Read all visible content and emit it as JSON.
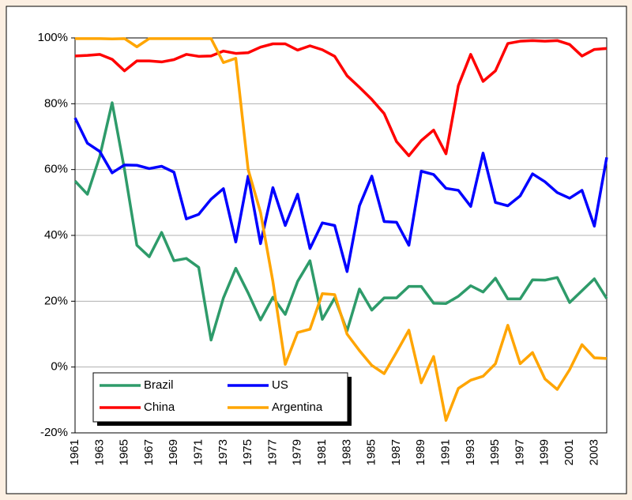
{
  "chart_data": {
    "type": "line",
    "categories": [
      "1961",
      null,
      "1963",
      null,
      "1965",
      null,
      "1967",
      null,
      "1969",
      null,
      "1971",
      null,
      "1973",
      null,
      "1975",
      null,
      "1977",
      null,
      "1979",
      null,
      "1981",
      null,
      "1983",
      null,
      "1985",
      null,
      "1987",
      null,
      "1989",
      null,
      "1991",
      null,
      "1993",
      null,
      "1995",
      null,
      "1997",
      null,
      "1999",
      null,
      "2001",
      null,
      "2003",
      null
    ],
    "series": [
      {
        "name": "Brazil",
        "color": "#2e9b6a",
        "values": [
          56.5,
          52.5,
          64,
          80.3,
          60,
          37,
          33.5,
          40.9,
          32.3,
          33,
          30.3,
          8.2,
          21,
          30,
          22.5,
          14.3,
          21.2,
          16,
          26,
          32.3,
          14.5,
          21,
          11,
          23.7,
          17.3,
          21,
          21,
          24.5,
          24.5,
          19.4,
          19.3,
          21.5,
          24.7,
          22.8,
          27,
          20.7,
          20.7,
          26.5,
          26.4,
          27.2,
          19.6,
          23.2,
          26.8,
          20.8
        ]
      },
      {
        "name": "US",
        "color": "#0000ff",
        "values": [
          75.7,
          68,
          65.5,
          59,
          61.4,
          61.3,
          60.3,
          61,
          59.2,
          45,
          46.4,
          51,
          54.2,
          38,
          58,
          37.5,
          54.5,
          43,
          52.5,
          36,
          43.8,
          43,
          29,
          49,
          58,
          44.2,
          44,
          37,
          59.5,
          58.5,
          54.3,
          53.7,
          48.8,
          65,
          50,
          49,
          52,
          58.7,
          56.3,
          53,
          51.3,
          53.7,
          42.8,
          63.7
        ]
      },
      {
        "name": "China",
        "color": "#ff0000",
        "values": [
          94.5,
          94.7,
          95,
          93.5,
          90,
          93,
          93,
          92.7,
          93.4,
          95,
          94.4,
          94.5,
          96,
          95.3,
          95.5,
          97.2,
          98.2,
          98.2,
          96.3,
          97.6,
          96.4,
          94.4,
          88.5,
          85,
          81.3,
          77,
          68.5,
          64.2,
          68.8,
          72,
          64.8,
          85.5,
          95,
          86.8,
          90,
          98.3,
          99,
          99.2,
          99,
          99.2,
          98,
          94.5,
          96.5,
          96.8
        ]
      },
      {
        "name": "Argentina",
        "color": "#ffa500",
        "values": [
          99.8,
          99.8,
          99.8,
          99.7,
          99.8,
          97.3,
          99.8,
          99.8,
          99.8,
          99.8,
          99.8,
          99.8,
          92.5,
          93.8,
          60,
          47,
          26,
          0.8,
          10.5,
          11.5,
          22.3,
          22,
          10,
          5,
          0.5,
          -2,
          4.5,
          11.2,
          -4.8,
          3.2,
          -16.2,
          -6.5,
          -4,
          -2.8,
          1,
          12.7,
          1,
          4.4,
          -3.6,
          -6.8,
          -0.8,
          6.8,
          2.8,
          2.6
        ]
      }
    ],
    "ylim": [
      -20,
      100
    ],
    "yticks": [
      {
        "value": -20,
        "label": "-20%"
      },
      {
        "value": 0,
        "label": "0%"
      },
      {
        "value": 20,
        "label": "20%"
      },
      {
        "value": 40,
        "label": "40%"
      },
      {
        "value": 60,
        "label": "60%"
      },
      {
        "value": 80,
        "label": "80%"
      },
      {
        "value": 100,
        "label": "100%"
      }
    ],
    "grid": true,
    "legend": "lower left"
  }
}
